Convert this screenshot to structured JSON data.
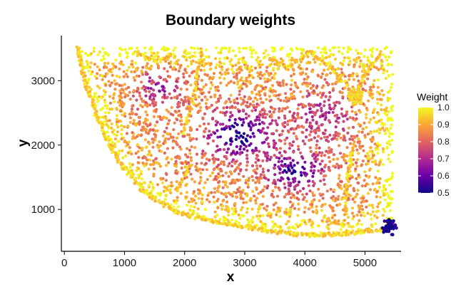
{
  "chart_data": {
    "type": "scatter",
    "title": "Boundary weights",
    "xlabel": "x",
    "ylabel": "y",
    "xlim": [
      -50,
      5600
    ],
    "ylim": [
      350,
      3700
    ],
    "xticks": [
      0,
      1000,
      2000,
      3000,
      4000,
      5000
    ],
    "xtick_labels": [
      "0",
      "1000",
      "2000",
      "3000",
      "4000",
      "5000"
    ],
    "yticks": [
      1000,
      2000,
      3000
    ],
    "ytick_labels": [
      "1000",
      "2000",
      "3000"
    ],
    "grid": false,
    "legend": {
      "title": "Weight",
      "placement": "right",
      "range": [
        0.5,
        1.0
      ],
      "ticks": [
        0.5,
        0.6,
        0.7,
        0.8,
        0.9,
        1.0
      ],
      "tick_labels": [
        "0.5",
        "0.6",
        "0.7",
        "0.8",
        "0.9",
        "1.0"
      ]
    },
    "colormap": "plasma",
    "colormap_stops": [
      "#0d0887",
      "#6a00a8",
      "#b12a90",
      "#e16462",
      "#fca636",
      "#f0f921"
    ],
    "boundary_outline": [
      [
        230,
        3520
      ],
      [
        320,
        3050
      ],
      [
        560,
        2400
      ],
      [
        900,
        1750
      ],
      [
        1350,
        1250
      ],
      [
        1900,
        950
      ],
      [
        2600,
        790
      ],
      [
        3300,
        680
      ],
      [
        4000,
        600
      ],
      [
        4650,
        620
      ],
      [
        5150,
        680
      ],
      [
        5450,
        720
      ],
      [
        5450,
        3500
      ]
    ],
    "low_weight_regions": [
      {
        "center": [
          2950,
          2150
        ],
        "spread": [
          550,
          380
        ],
        "weight": 0.52
      },
      {
        "center": [
          3850,
          1600
        ],
        "spread": [
          450,
          300
        ],
        "weight": 0.54
      },
      {
        "center": [
          1600,
          2900
        ],
        "spread": [
          400,
          300
        ],
        "weight": 0.68
      },
      {
        "center": [
          4300,
          2450
        ],
        "spread": [
          450,
          400
        ],
        "weight": 0.7
      }
    ],
    "high_weight_spots": [
      {
        "center": [
          4850,
          2750
        ],
        "weight": 0.95
      },
      {
        "center": [
          5400,
          720
        ],
        "weight": 0.52
      }
    ],
    "point_count": 3000
  }
}
